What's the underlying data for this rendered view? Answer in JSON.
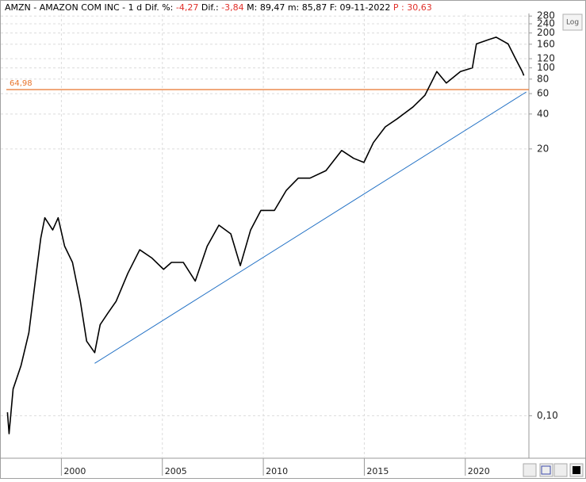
{
  "header": {
    "symbol": "AMZN - AMAZON COM INC -",
    "period": "1 d",
    "dif_pct_label": "Dif. %:",
    "dif_pct": "-4,27",
    "dif_label": "Dif.:",
    "dif": "-3,84",
    "max_label": "M:",
    "max": "89,47",
    "min_label": "m:",
    "min": "85,87",
    "date_label": "F:",
    "date": "09-11-2022",
    "p_label": "P :",
    "p": "30,63"
  },
  "log_button": "Log",
  "chart_data": {
    "type": "line",
    "log_scale": true,
    "grid": true,
    "x": [
      1997.33,
      1997.41,
      1997.61,
      1998.0,
      1998.39,
      1998.78,
      1998.98,
      1999.18,
      1999.57,
      1999.84,
      2000.16,
      2000.55,
      2000.94,
      2001.25,
      2001.65,
      2001.92,
      2002.31,
      2002.71,
      2003.29,
      2003.88,
      2004.47,
      2005.06,
      2005.45,
      2006.04,
      2006.63,
      2007.22,
      2007.8,
      2008.39,
      2008.86,
      2009.37,
      2009.88,
      2010.55,
      2011.14,
      2011.73,
      2012.31,
      2013.1,
      2013.88,
      2014.47,
      2014.98,
      2015.45,
      2016.04,
      2016.63,
      2017.41,
      2018.0,
      2018.59,
      2019.06,
      2019.76,
      2020.35,
      2020.55,
      2021.14,
      2021.53,
      2022.12,
      2022.51,
      2022.82,
      2022.9
    ],
    "series": [
      {
        "color": "#000000",
        "values": [
          0.107,
          0.07,
          0.17,
          0.27,
          0.52,
          1.83,
          3.4,
          5.1,
          4.0,
          5.1,
          2.9,
          2.1,
          0.97,
          0.44,
          0.35,
          0.61,
          0.77,
          0.97,
          1.69,
          2.7,
          2.3,
          1.83,
          2.1,
          2.1,
          1.45,
          2.9,
          4.4,
          3.7,
          1.97,
          4.0,
          5.9,
          5.9,
          8.8,
          11.2,
          11.2,
          13,
          19.4,
          16.6,
          15.3,
          22.7,
          31,
          36.4,
          46,
          58,
          93,
          74,
          93,
          100,
          161,
          175,
          184,
          161,
          118,
          93,
          85.9
        ]
      }
    ],
    "xlim": [
      1997.0,
      2023.15
    ],
    "xticks": [
      2000,
      2005,
      2010,
      2015,
      2020
    ],
    "ylim": [
      0.043,
      290
    ],
    "yticks": [
      {
        "value": 0.1,
        "label": "0,10"
      },
      20,
      40,
      60,
      80,
      100,
      120,
      160,
      200,
      240,
      280
    ],
    "hline": {
      "value": 64.98,
      "label": "64,98",
      "color": "#e8742c"
    },
    "trendline": {
      "x": [
        2001.65,
        2023.02
      ],
      "y": [
        0.283,
        62
      ],
      "color": "#1f6fc4"
    }
  }
}
